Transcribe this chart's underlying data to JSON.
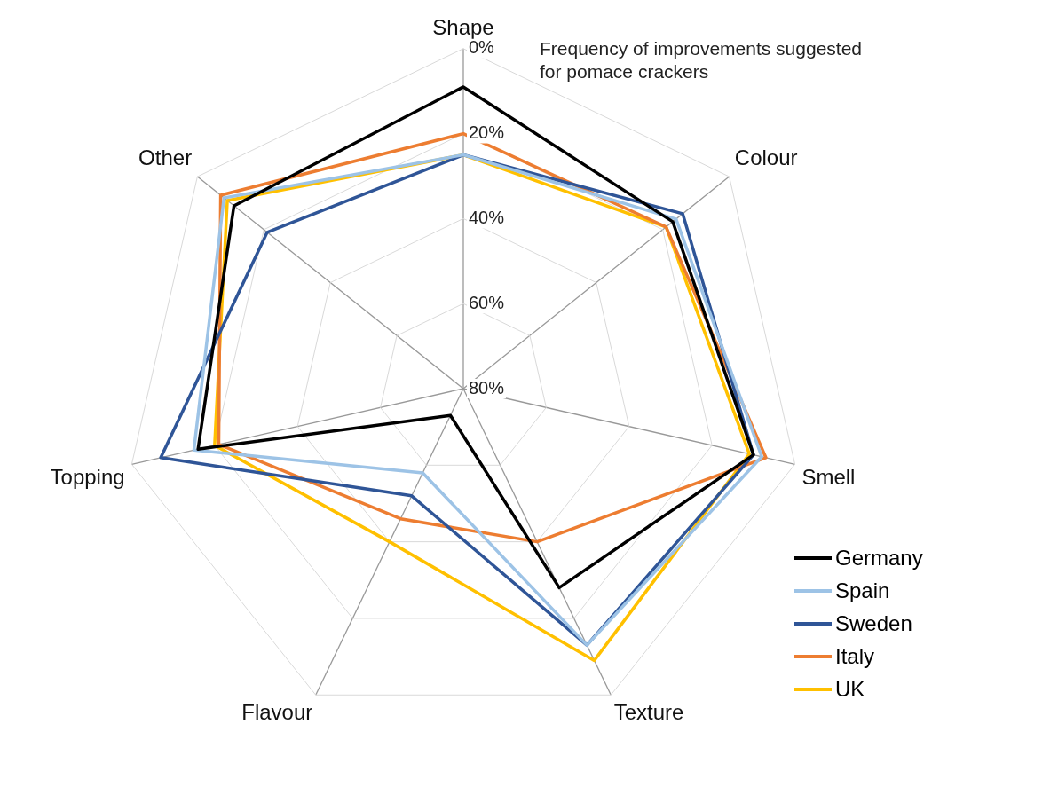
{
  "chart_data": {
    "type": "radar",
    "title": "Frequency of improvements suggested for pomace crackers",
    "categories": [
      "Shape",
      "Colour",
      "Smell",
      "Texture",
      "Flavour",
      "Topping",
      "Other"
    ],
    "ylim": [
      80,
      0
    ],
    "yticks": [
      {
        "value": 0,
        "label": "0%"
      },
      {
        "value": 20,
        "label": "20%"
      },
      {
        "value": 40,
        "label": "40%"
      },
      {
        "value": 60,
        "label": "60%"
      },
      {
        "value": 80,
        "label": "80%"
      }
    ],
    "grid": true,
    "legend": "bottom right",
    "marker": "none",
    "series": [
      {
        "name": "Germany",
        "color": "#000000",
        "values": [
          9,
          17,
          10,
          28,
          73,
          16,
          11
        ]
      },
      {
        "name": "Spain",
        "color": "#9dc3e6",
        "values": [
          25,
          16,
          8,
          13,
          58,
          15,
          8
        ]
      },
      {
        "name": "Sweden",
        "color": "#2f5597",
        "values": [
          25,
          14,
          10,
          13,
          52,
          7,
          21
        ]
      },
      {
        "name": "Italy",
        "color": "#ed7d31",
        "values": [
          20,
          19,
          7,
          40,
          46,
          21,
          7
        ]
      },
      {
        "name": "UK",
        "color": "#ffc000",
        "values": [
          25,
          19,
          11,
          9,
          40,
          20,
          9
        ]
      }
    ]
  }
}
